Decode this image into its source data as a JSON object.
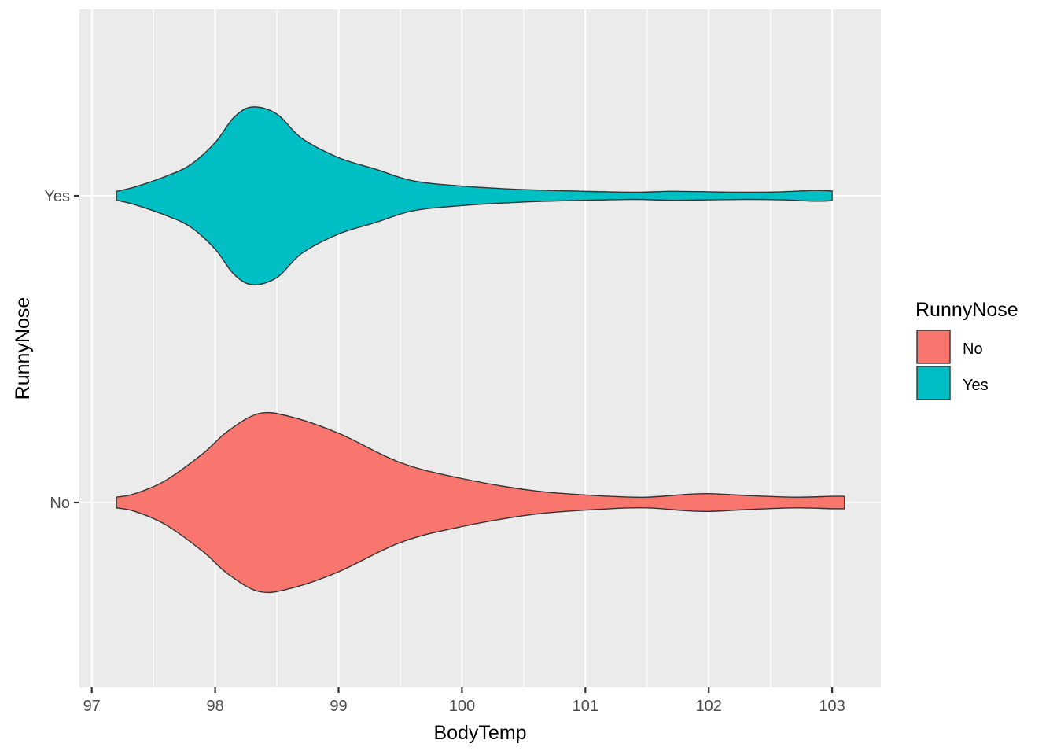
{
  "chart_data": {
    "type": "violin",
    "orientation": "horizontal",
    "title": "",
    "xlabel": "BodyTemp",
    "ylabel": "RunnyNose",
    "xlim": [
      96.9,
      103.4
    ],
    "x_ticks": [
      97,
      98,
      99,
      100,
      101,
      102,
      103
    ],
    "x_tick_labels": [
      "97",
      "98",
      "99",
      "100",
      "101",
      "102",
      "103"
    ],
    "categories": [
      "No",
      "Yes"
    ],
    "background": "#ebebeb",
    "grid": true,
    "legend": {
      "title": "RunnyNose",
      "position": "right",
      "entries": [
        "No",
        "Yes"
      ]
    },
    "series": [
      {
        "name": "No",
        "color": "#f8766d",
        "min": 97.2,
        "max": 103.1,
        "density_profile": [
          [
            97.2,
            0.06
          ],
          [
            97.35,
            0.1
          ],
          [
            97.6,
            0.25
          ],
          [
            97.9,
            0.55
          ],
          [
            98.1,
            0.8
          ],
          [
            98.35,
            1.0
          ],
          [
            98.6,
            0.97
          ],
          [
            99.0,
            0.78
          ],
          [
            99.5,
            0.45
          ],
          [
            100.0,
            0.27
          ],
          [
            100.6,
            0.13
          ],
          [
            101.2,
            0.07
          ],
          [
            101.5,
            0.06
          ],
          [
            101.8,
            0.09
          ],
          [
            102.0,
            0.1
          ],
          [
            102.3,
            0.08
          ],
          [
            102.7,
            0.06
          ],
          [
            103.0,
            0.07
          ],
          [
            103.1,
            0.07
          ]
        ]
      },
      {
        "name": "Yes",
        "color": "#00bfc4",
        "min": 97.2,
        "max": 103.0,
        "density_profile": [
          [
            97.2,
            0.05
          ],
          [
            97.35,
            0.1
          ],
          [
            97.6,
            0.22
          ],
          [
            97.8,
            0.35
          ],
          [
            98.0,
            0.6
          ],
          [
            98.15,
            0.88
          ],
          [
            98.3,
            1.0
          ],
          [
            98.5,
            0.92
          ],
          [
            98.7,
            0.65
          ],
          [
            99.0,
            0.43
          ],
          [
            99.3,
            0.3
          ],
          [
            99.6,
            0.17
          ],
          [
            100.0,
            0.11
          ],
          [
            100.5,
            0.07
          ],
          [
            101.0,
            0.05
          ],
          [
            101.4,
            0.04
          ],
          [
            101.7,
            0.05
          ],
          [
            102.0,
            0.045
          ],
          [
            102.3,
            0.04
          ],
          [
            102.6,
            0.045
          ],
          [
            102.85,
            0.06
          ],
          [
            103.0,
            0.055
          ]
        ]
      }
    ]
  }
}
